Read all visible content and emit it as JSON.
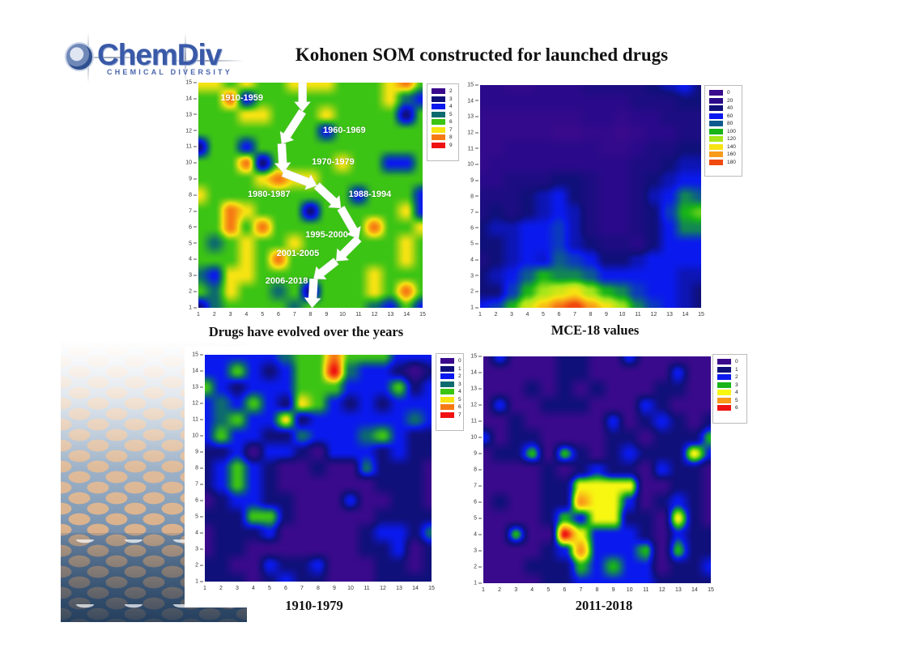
{
  "header": {
    "logo_name": "ChemDiv",
    "logo_subtitle": "CHEMICAL DIVERSITY",
    "title": "Kohonen SOM constructed for launched drugs"
  },
  "chart_data": [
    {
      "type": "heatmap",
      "id": "evolution",
      "title": "Drugs have evolved over the years",
      "xlabel": "",
      "ylabel": "",
      "x_ticks": [
        1,
        2,
        3,
        4,
        5,
        6,
        7,
        8,
        9,
        10,
        11,
        12,
        13,
        14,
        15
      ],
      "y_ticks": [
        1,
        2,
        3,
        4,
        5,
        6,
        7,
        8,
        9,
        10,
        11,
        12,
        13,
        14,
        15
      ],
      "xlim": [
        1,
        15
      ],
      "ylim": [
        1,
        15
      ],
      "legend": [
        {
          "label": "2",
          "color": "#3a0a8c"
        },
        {
          "label": "3",
          "color": "#10107a"
        },
        {
          "label": "4",
          "color": "#0a1aee"
        },
        {
          "label": "5",
          "color": "#0d6b6e"
        },
        {
          "label": "6",
          "color": "#3cc414"
        },
        {
          "label": "7",
          "color": "#f7e312"
        },
        {
          "label": "8",
          "color": "#f67a14"
        },
        {
          "label": "9",
          "color": "#f01212"
        }
      ],
      "annotations": [
        {
          "text": "1910-1959",
          "x": 3.8,
          "y": 14.0
        },
        {
          "text": "1960-1969",
          "x": 10.2,
          "y": 12.0
        },
        {
          "text": "1970-1979",
          "x": 9.5,
          "y": 10.0
        },
        {
          "text": "1980-1987",
          "x": 5.5,
          "y": 8.0
        },
        {
          "text": "1988-1994",
          "x": 11.8,
          "y": 8.0
        },
        {
          "text": "1995-2000",
          "x": 9.1,
          "y": 5.5
        },
        {
          "text": "2001-2005",
          "x": 7.3,
          "y": 4.3
        },
        {
          "text": "2006-2018",
          "x": 6.6,
          "y": 2.6
        }
      ],
      "arrow_path": [
        [
          7.5,
          15
        ],
        [
          7.5,
          13.2
        ],
        [
          6.2,
          11.2
        ],
        [
          6.3,
          9.4
        ],
        [
          8.4,
          8.6
        ],
        [
          9.9,
          7.2
        ],
        [
          11,
          5.3
        ],
        [
          9.6,
          3.9
        ],
        [
          8.2,
          2.8
        ],
        [
          8.1,
          1.0
        ]
      ],
      "grid": [
        [
          3,
          5,
          6,
          6,
          6,
          6,
          5,
          6,
          6,
          6,
          6,
          5,
          4,
          6,
          4
        ],
        [
          6,
          5,
          7,
          6,
          6,
          5,
          6,
          3,
          6,
          6,
          6,
          7,
          6,
          8,
          6
        ],
        [
          5,
          4,
          7,
          7,
          6,
          6,
          6,
          6,
          6,
          6,
          6,
          7,
          6,
          6,
          6
        ],
        [
          6,
          6,
          6,
          7,
          6,
          8,
          6,
          6,
          6,
          6,
          6,
          6,
          6,
          7,
          6
        ],
        [
          6,
          5,
          6,
          7,
          6,
          6,
          7,
          6,
          6,
          6,
          6,
          6,
          6,
          7,
          6
        ],
        [
          6,
          6,
          8,
          6,
          8,
          6,
          6,
          6,
          6,
          6,
          6,
          8,
          6,
          6,
          7
        ],
        [
          6,
          6,
          8,
          7,
          6,
          6,
          6,
          3,
          6,
          6,
          6,
          6,
          6,
          7,
          4
        ],
        [
          7,
          6,
          6,
          6,
          6,
          6,
          6,
          6,
          6,
          6,
          4,
          6,
          6,
          6,
          4
        ],
        [
          6,
          6,
          6,
          6,
          7,
          8,
          7,
          7,
          6,
          6,
          6,
          6,
          6,
          6,
          6
        ],
        [
          6,
          6,
          6,
          8,
          3,
          6,
          6,
          6,
          6,
          7,
          6,
          6,
          4,
          4,
          6
        ],
        [
          3,
          6,
          6,
          4,
          6,
          6,
          6,
          6,
          6,
          6,
          6,
          6,
          6,
          6,
          6
        ],
        [
          6,
          6,
          6,
          6,
          6,
          6,
          6,
          6,
          4,
          6,
          6,
          6,
          6,
          6,
          6
        ],
        [
          6,
          6,
          6,
          7,
          7,
          6,
          6,
          6,
          7,
          6,
          6,
          6,
          6,
          3,
          6
        ],
        [
          6,
          6,
          8,
          4,
          6,
          6,
          6,
          6,
          6,
          6,
          6,
          6,
          7,
          5,
          4
        ],
        [
          7,
          7,
          6,
          7,
          6,
          6,
          7,
          7,
          7,
          6,
          6,
          6,
          7,
          8,
          6
        ]
      ]
    },
    {
      "type": "heatmap",
      "id": "mce18",
      "title": "MCE-18 values",
      "x_ticks": [
        1,
        2,
        3,
        4,
        5,
        6,
        7,
        8,
        9,
        10,
        11,
        12,
        13,
        14,
        15
      ],
      "y_ticks": [
        1,
        2,
        3,
        4,
        5,
        6,
        7,
        8,
        9,
        10,
        11,
        12,
        13,
        14,
        15
      ],
      "xlim": [
        1,
        15
      ],
      "ylim": [
        1,
        15
      ],
      "legend": [
        {
          "label": "0",
          "color": "#3a0a8c"
        },
        {
          "label": "20",
          "color": "#2a0a8a"
        },
        {
          "label": "40",
          "color": "#10107a"
        },
        {
          "label": "60",
          "color": "#0a1aee"
        },
        {
          "label": "80",
          "color": "#0d5b8e"
        },
        {
          "label": "100",
          "color": "#18b418"
        },
        {
          "label": "120",
          "color": "#a6e61a"
        },
        {
          "label": "140",
          "color": "#f7e312"
        },
        {
          "label": "160",
          "color": "#f99a1a"
        },
        {
          "label": "180",
          "color": "#f04a10"
        }
      ],
      "grid": [
        [
          60,
          70,
          100,
          130,
          150,
          170,
          185,
          160,
          140,
          120,
          90,
          70,
          60,
          50,
          40
        ],
        [
          40,
          40,
          70,
          100,
          120,
          130,
          140,
          120,
          100,
          90,
          70,
          60,
          60,
          50,
          40
        ],
        [
          40,
          50,
          60,
          80,
          100,
          90,
          90,
          80,
          60,
          60,
          60,
          60,
          60,
          50,
          50
        ],
        [
          30,
          40,
          50,
          60,
          55,
          80,
          70,
          60,
          40,
          40,
          50,
          60,
          60,
          60,
          60
        ],
        [
          40,
          40,
          50,
          60,
          60,
          70,
          50,
          40,
          30,
          30,
          20,
          40,
          60,
          60,
          60
        ],
        [
          40,
          50,
          50,
          60,
          60,
          70,
          50,
          30,
          20,
          20,
          30,
          40,
          60,
          90,
          90
        ],
        [
          30,
          40,
          30,
          40,
          50,
          60,
          50,
          30,
          20,
          20,
          30,
          40,
          70,
          100,
          110
        ],
        [
          30,
          30,
          30,
          40,
          50,
          60,
          40,
          30,
          20,
          20,
          30,
          50,
          60,
          90,
          80
        ],
        [
          20,
          20,
          30,
          30,
          30,
          40,
          40,
          30,
          20,
          20,
          30,
          40,
          50,
          60,
          60
        ],
        [
          10,
          20,
          20,
          20,
          20,
          20,
          20,
          20,
          20,
          20,
          30,
          30,
          40,
          50,
          50
        ],
        [
          10,
          10,
          20,
          20,
          20,
          20,
          20,
          20,
          10,
          10,
          20,
          30,
          30,
          40,
          40
        ],
        [
          10,
          10,
          10,
          10,
          10,
          0,
          0,
          10,
          10,
          0,
          10,
          20,
          20,
          30,
          30
        ],
        [
          10,
          10,
          10,
          10,
          10,
          10,
          10,
          20,
          20,
          10,
          20,
          20,
          30,
          30,
          30
        ],
        [
          20,
          20,
          20,
          20,
          20,
          20,
          20,
          20,
          20,
          20,
          30,
          30,
          30,
          40,
          40
        ],
        [
          20,
          20,
          10,
          10,
          20,
          20,
          20,
          30,
          30,
          30,
          30,
          40,
          50,
          60,
          40
        ]
      ]
    },
    {
      "type": "heatmap",
      "id": "period_1910_1979",
      "title": "1910-1979",
      "x_ticks": [
        1,
        2,
        3,
        4,
        5,
        6,
        7,
        8,
        9,
        10,
        11,
        12,
        13,
        14,
        15
      ],
      "y_ticks": [
        1,
        2,
        3,
        4,
        5,
        6,
        7,
        8,
        9,
        10,
        11,
        12,
        13,
        14,
        15
      ],
      "xlim": [
        1,
        15
      ],
      "ylim": [
        1,
        15
      ],
      "legend": [
        {
          "label": "0",
          "color": "#3a0a8c"
        },
        {
          "label": "1",
          "color": "#10107a"
        },
        {
          "label": "2",
          "color": "#0a1aee"
        },
        {
          "label": "3",
          "color": "#0d6b6e"
        },
        {
          "label": "4",
          "color": "#3cc414"
        },
        {
          "label": "5",
          "color": "#f7e312"
        },
        {
          "label": "6",
          "color": "#f67a14"
        },
        {
          "label": "7",
          "color": "#f01212"
        }
      ],
      "grid": [
        [
          1,
          1,
          1,
          0,
          1,
          2,
          1,
          1,
          0,
          0,
          0,
          1,
          1,
          1,
          1
        ],
        [
          1,
          1,
          0,
          0,
          2,
          1,
          1,
          2,
          0,
          0,
          0,
          1,
          1,
          0,
          1
        ],
        [
          0,
          1,
          1,
          0,
          0,
          0,
          0,
          0,
          0,
          0,
          1,
          1,
          2,
          0,
          1
        ],
        [
          0,
          1,
          1,
          1,
          2,
          0,
          0,
          0,
          0,
          0,
          1,
          2,
          2,
          1,
          3
        ],
        [
          1,
          1,
          1,
          4,
          4,
          1,
          0,
          0,
          0,
          0,
          0,
          1,
          1,
          1,
          1
        ],
        [
          0,
          1,
          2,
          2,
          1,
          1,
          0,
          0,
          0,
          2,
          0,
          0,
          1,
          1,
          0
        ],
        [
          1,
          2,
          4,
          2,
          1,
          0,
          0,
          0,
          0,
          0,
          0,
          1,
          1,
          1,
          0
        ],
        [
          1,
          2,
          4,
          2,
          1,
          0,
          0,
          1,
          0,
          0,
          3,
          1,
          1,
          1,
          0
        ],
        [
          1,
          1,
          2,
          0,
          2,
          2,
          1,
          0,
          2,
          2,
          2,
          1,
          2,
          1,
          1
        ],
        [
          2,
          4,
          2,
          2,
          1,
          1,
          3,
          2,
          2,
          2,
          3,
          4,
          2,
          1,
          1
        ],
        [
          2,
          3,
          4,
          2,
          2,
          5,
          1,
          2,
          2,
          2,
          2,
          2,
          2,
          3,
          2
        ],
        [
          2,
          3,
          2,
          4,
          2,
          1,
          5,
          4,
          2,
          1,
          2,
          1,
          2,
          2,
          2
        ],
        [
          4,
          2,
          1,
          2,
          2,
          2,
          4,
          4,
          4,
          2,
          2,
          2,
          4,
          1,
          2
        ],
        [
          2,
          2,
          4,
          2,
          1,
          2,
          4,
          4,
          7,
          3,
          2,
          2,
          1,
          0,
          1
        ],
        [
          2,
          2,
          2,
          2,
          2,
          3,
          4,
          4,
          6,
          4,
          4,
          4,
          2,
          2,
          2
        ]
      ]
    },
    {
      "type": "heatmap",
      "id": "period_2011_2018",
      "title": "2011-2018",
      "x_ticks": [
        1,
        2,
        3,
        4,
        5,
        6,
        7,
        8,
        9,
        10,
        11,
        12,
        13,
        14,
        15
      ],
      "y_ticks": [
        1,
        2,
        3,
        4,
        5,
        6,
        7,
        8,
        9,
        10,
        11,
        12,
        13,
        14,
        15
      ],
      "xlim": [
        1,
        15
      ],
      "ylim": [
        1,
        15
      ],
      "legend": [
        {
          "label": "0",
          "color": "#3a0a8c"
        },
        {
          "label": "1",
          "color": "#10107a"
        },
        {
          "label": "2",
          "color": "#0a1aee"
        },
        {
          "label": "3",
          "color": "#18b418"
        },
        {
          "label": "4",
          "color": "#f7f712"
        },
        {
          "label": "5",
          "color": "#f99a1a"
        },
        {
          "label": "6",
          "color": "#f01212"
        }
      ],
      "grid": [
        [
          0,
          0,
          0,
          0,
          1,
          1,
          2,
          2,
          2,
          2,
          2,
          1,
          1,
          1,
          1
        ],
        [
          0,
          0,
          0,
          1,
          1,
          1,
          3,
          2,
          3,
          2,
          2,
          0,
          1,
          1,
          2
        ],
        [
          0,
          0,
          0,
          0,
          1,
          2,
          5,
          2,
          2,
          2,
          3,
          0,
          3,
          1,
          1
        ],
        [
          0,
          0,
          3,
          0,
          0,
          6,
          4,
          2,
          2,
          2,
          1,
          0,
          2,
          1,
          1
        ],
        [
          0,
          0,
          0,
          0,
          1,
          3,
          2,
          4,
          4,
          1,
          1,
          0,
          4,
          1,
          0
        ],
        [
          0,
          1,
          0,
          0,
          1,
          1,
          5,
          4,
          4,
          2,
          0,
          1,
          2,
          1,
          0
        ],
        [
          0,
          0,
          0,
          0,
          1,
          1,
          4,
          4,
          4,
          4,
          0,
          0,
          1,
          1,
          0
        ],
        [
          0,
          0,
          0,
          0,
          1,
          0,
          1,
          2,
          1,
          1,
          0,
          2,
          1,
          1,
          0
        ],
        [
          0,
          1,
          1,
          3,
          0,
          3,
          1,
          0,
          1,
          2,
          1,
          1,
          1,
          4,
          2
        ],
        [
          2,
          0,
          1,
          1,
          0,
          0,
          0,
          0,
          1,
          1,
          0,
          1,
          1,
          1,
          3
        ],
        [
          0,
          0,
          1,
          0,
          0,
          0,
          0,
          0,
          2,
          0,
          1,
          2,
          1,
          0,
          1
        ],
        [
          0,
          2,
          0,
          0,
          1,
          1,
          1,
          0,
          0,
          0,
          2,
          1,
          0,
          0,
          0
        ],
        [
          0,
          0,
          0,
          1,
          0,
          1,
          0,
          1,
          0,
          0,
          0,
          1,
          1,
          0,
          0
        ],
        [
          0,
          0,
          0,
          0,
          0,
          1,
          1,
          0,
          0,
          0,
          0,
          0,
          2,
          0,
          0
        ],
        [
          0,
          2,
          0,
          0,
          0,
          1,
          1,
          0,
          0,
          2,
          0,
          0,
          0,
          0,
          0
        ]
      ]
    }
  ]
}
